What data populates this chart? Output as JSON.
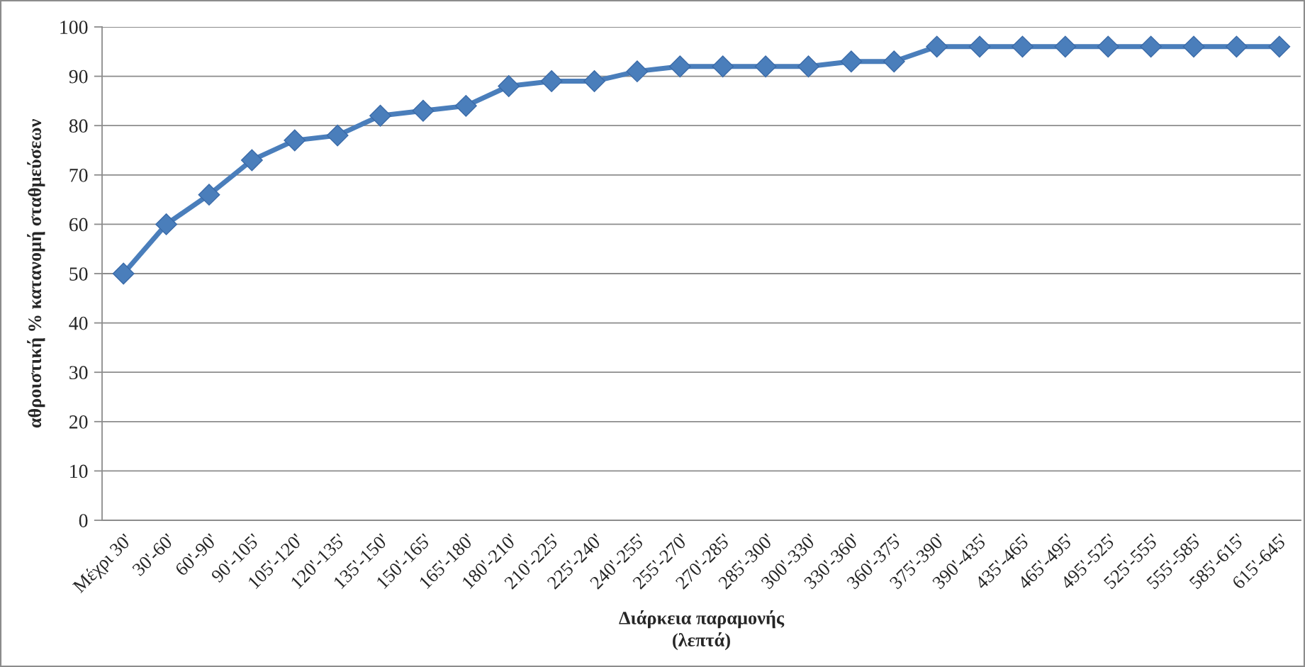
{
  "chart_data": {
    "type": "line",
    "xlabel": "Διάρκεια παραμονής\n(λεπτά)",
    "ylabel": "αθροιστική % κατανομή σταθμεύσεων",
    "categories": [
      "Μέχρι 30'",
      "30'-60'",
      "60'-90'",
      "90'-105'",
      "105'-120'",
      "120'-135'",
      "135'-150'",
      "150'-165'",
      "165'-180'",
      "180'-210'",
      "210'-225'",
      "225'-240'",
      "240'-255'",
      "255'-270'",
      "270'-285'",
      "285'-300'",
      "300'-330'",
      "330'-360'",
      "360'-375'",
      "375'-390'",
      "390'-435'",
      "435'-465'",
      "465'-495'",
      "495'-525'",
      "525'-555'",
      "555'-585'",
      "585'-615'",
      "615'-645'"
    ],
    "series": [
      {
        "color": "#4a7ebb",
        "values": [
          50,
          60,
          66,
          73,
          77,
          78,
          82,
          83,
          84,
          88,
          89,
          89,
          91,
          92,
          92,
          92,
          92,
          93,
          93,
          96,
          96,
          96,
          96,
          96,
          96,
          96,
          96,
          96
        ]
      }
    ],
    "ylim": [
      0,
      100
    ],
    "yticks": [
      0,
      10,
      20,
      30,
      40,
      50,
      60,
      70,
      80,
      90,
      100
    ],
    "grid": "y",
    "marker": "diamond",
    "line_style": "solid"
  }
}
